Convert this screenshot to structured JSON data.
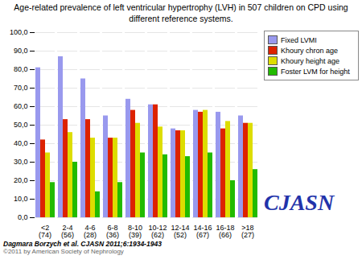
{
  "chart_data": {
    "type": "bar",
    "title": "Age-related prevalence of left ventricular hypertrophy (LVH) in 507 children on CPD using different reference systems.",
    "categories": [
      "<2\n(74)",
      "2-4\n(56)",
      "4-6\n(28)",
      "6-8\n(36)",
      "8-10\n(39)",
      "10-12\n(62)",
      "12-14\n(52)",
      "14-16\n(67)",
      "16-18\n(66)",
      ">18\n(27)"
    ],
    "series": [
      {
        "name": "Fixed LVMI",
        "color": "#9999EE",
        "values": [
          81,
          87,
          75,
          55,
          64,
          61,
          48,
          58,
          57,
          55
        ]
      },
      {
        "name": "Khoury chron age",
        "color": "#DD2200",
        "values": [
          42,
          53,
          53,
          43,
          58,
          61,
          47,
          57,
          48,
          51
        ]
      },
      {
        "name": "Khoury height age",
        "color": "#DDDD00",
        "values": [
          35,
          46,
          43,
          43,
          51,
          49,
          47,
          58,
          52,
          51
        ]
      },
      {
        "name": "Foster LVM for height",
        "color": "#22BB00",
        "values": [
          19,
          30,
          14,
          19,
          35,
          34,
          33,
          35,
          20,
          26
        ]
      }
    ],
    "ylim": [
      0,
      100
    ],
    "yticks": [
      {
        "value": 0,
        "label": "0,0"
      },
      {
        "value": 10,
        "label": "10,0"
      },
      {
        "value": 20,
        "label": "20,0"
      },
      {
        "value": 30,
        "label": "30,0"
      },
      {
        "value": 40,
        "label": "40,0"
      },
      {
        "value": 50,
        "label": "50,0"
      },
      {
        "value": 60,
        "label": "60,0"
      },
      {
        "value": 70,
        "label": "70,0"
      },
      {
        "value": 80,
        "label": "80,0"
      },
      {
        "value": 90,
        "label": "90,0"
      },
      {
        "value": 100,
        "label": "100,0"
      }
    ],
    "grid": true,
    "legend": "upper-right",
    "annotations": [
      "Dagmara Borzych et al. CJASN 2011;6:1934-1943",
      "©2011 by American Society of Nephrology",
      "CJASN"
    ]
  }
}
